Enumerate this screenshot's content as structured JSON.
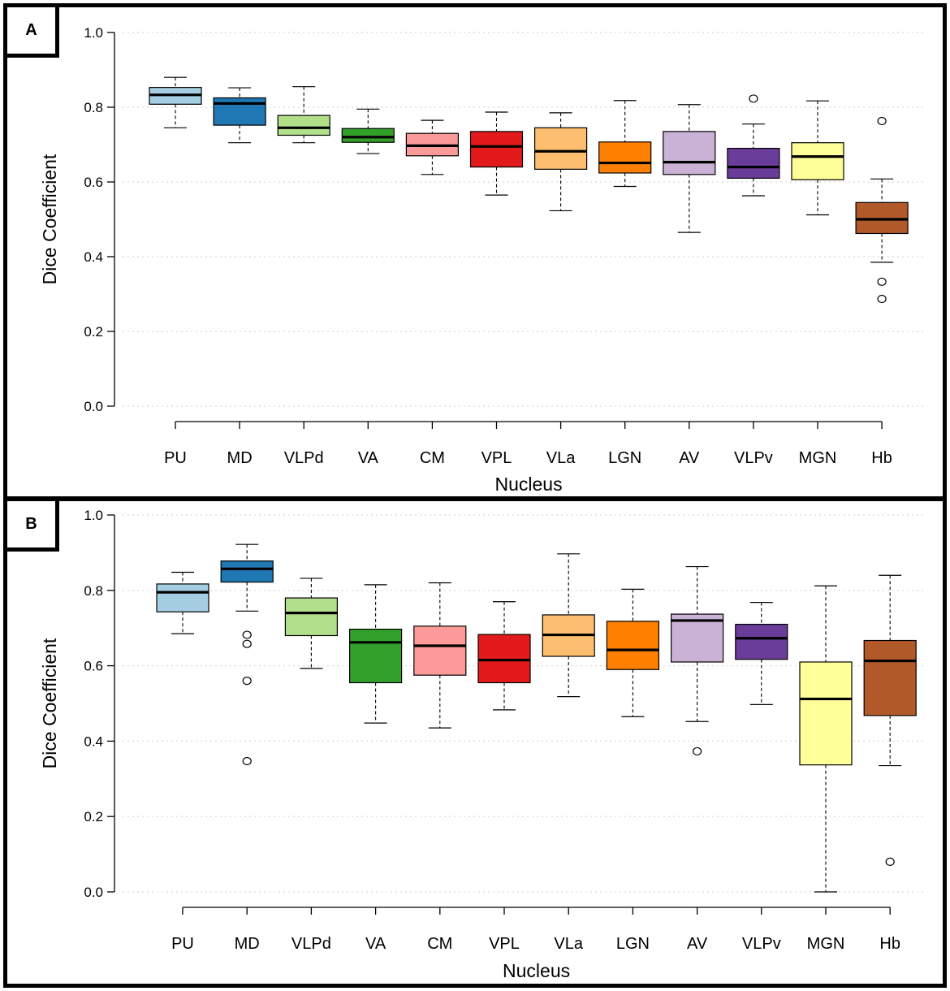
{
  "chart_data": [
    {
      "panel_label": "A",
      "type": "boxplot",
      "ylabel": "Dice Coefficient",
      "xlabel": "Nucleus",
      "ylim": [
        0,
        1
      ],
      "yticks": [
        "0.0",
        "0.2",
        "0.4",
        "0.6",
        "0.8",
        "1.0"
      ],
      "grid": "horizontal dotted",
      "categories": [
        "PU",
        "MD",
        "VLPd",
        "VA",
        "CM",
        "VPL",
        "VLa",
        "LGN",
        "AV",
        "VLPv",
        "MGN",
        "Hb"
      ],
      "colors": [
        "#a6cee3",
        "#1f78b4",
        "#b2df8a",
        "#33a02c",
        "#fb9a99",
        "#e31a1c",
        "#fdbf6f",
        "#ff7f00",
        "#cab2d6",
        "#6a3d9a",
        "#ffff99",
        "#b15928"
      ],
      "boxes": [
        {
          "min": 0.745,
          "q1": 0.808,
          "median": 0.833,
          "q3": 0.853,
          "max": 0.88,
          "outliers": []
        },
        {
          "min": 0.705,
          "q1": 0.752,
          "median": 0.81,
          "q3": 0.825,
          "max": 0.852,
          "outliers": []
        },
        {
          "min": 0.705,
          "q1": 0.725,
          "median": 0.745,
          "q3": 0.778,
          "max": 0.855,
          "outliers": []
        },
        {
          "min": 0.676,
          "q1": 0.706,
          "median": 0.72,
          "q3": 0.743,
          "max": 0.795,
          "outliers": []
        },
        {
          "min": 0.62,
          "q1": 0.67,
          "median": 0.697,
          "q3": 0.73,
          "max": 0.765,
          "outliers": []
        },
        {
          "min": 0.565,
          "q1": 0.64,
          "median": 0.695,
          "q3": 0.735,
          "max": 0.787,
          "outliers": []
        },
        {
          "min": 0.523,
          "q1": 0.634,
          "median": 0.682,
          "q3": 0.745,
          "max": 0.785,
          "outliers": []
        },
        {
          "min": 0.588,
          "q1": 0.624,
          "median": 0.651,
          "q3": 0.707,
          "max": 0.818,
          "outliers": []
        },
        {
          "min": 0.465,
          "q1": 0.62,
          "median": 0.653,
          "q3": 0.735,
          "max": 0.807,
          "outliers": []
        },
        {
          "min": 0.563,
          "q1": 0.61,
          "median": 0.64,
          "q3": 0.69,
          "max": 0.755,
          "outliers": [
            0.823
          ]
        },
        {
          "min": 0.512,
          "q1": 0.606,
          "median": 0.668,
          "q3": 0.705,
          "max": 0.817,
          "outliers": []
        },
        {
          "min": 0.385,
          "q1": 0.462,
          "median": 0.5,
          "q3": 0.545,
          "max": 0.608,
          "outliers": [
            0.763,
            0.333,
            0.287
          ]
        }
      ]
    },
    {
      "panel_label": "B",
      "type": "boxplot",
      "ylabel": "Dice Coefficient",
      "xlabel": "Nucleus",
      "ylim": [
        0,
        1
      ],
      "yticks": [
        "0.0",
        "0.2",
        "0.4",
        "0.6",
        "0.8",
        "1.0"
      ],
      "grid": "horizontal dotted",
      "categories": [
        "PU",
        "MD",
        "VLPd",
        "VA",
        "CM",
        "VPL",
        "VLa",
        "LGN",
        "AV",
        "VLPv",
        "MGN",
        "Hb"
      ],
      "colors": [
        "#a6cee3",
        "#1f78b4",
        "#b2df8a",
        "#33a02c",
        "#fb9a99",
        "#e31a1c",
        "#fdbf6f",
        "#ff7f00",
        "#cab2d6",
        "#6a3d9a",
        "#ffff99",
        "#b15928"
      ],
      "boxes": [
        {
          "min": 0.685,
          "q1": 0.743,
          "median": 0.795,
          "q3": 0.817,
          "max": 0.848,
          "outliers": []
        },
        {
          "min": 0.745,
          "q1": 0.822,
          "median": 0.857,
          "q3": 0.878,
          "max": 0.922,
          "outliers": [
            0.682,
            0.658,
            0.56,
            0.347
          ]
        },
        {
          "min": 0.593,
          "q1": 0.68,
          "median": 0.74,
          "q3": 0.78,
          "max": 0.832,
          "outliers": []
        },
        {
          "min": 0.448,
          "q1": 0.555,
          "median": 0.662,
          "q3": 0.697,
          "max": 0.815,
          "outliers": []
        },
        {
          "min": 0.435,
          "q1": 0.575,
          "median": 0.653,
          "q3": 0.705,
          "max": 0.82,
          "outliers": []
        },
        {
          "min": 0.483,
          "q1": 0.555,
          "median": 0.615,
          "q3": 0.683,
          "max": 0.77,
          "outliers": []
        },
        {
          "min": 0.518,
          "q1": 0.625,
          "median": 0.682,
          "q3": 0.735,
          "max": 0.897,
          "outliers": []
        },
        {
          "min": 0.465,
          "q1": 0.59,
          "median": 0.642,
          "q3": 0.718,
          "max": 0.803,
          "outliers": []
        },
        {
          "min": 0.452,
          "q1": 0.61,
          "median": 0.72,
          "q3": 0.737,
          "max": 0.863,
          "outliers": [
            0.373
          ]
        },
        {
          "min": 0.497,
          "q1": 0.617,
          "median": 0.673,
          "q3": 0.71,
          "max": 0.768,
          "outliers": []
        },
        {
          "min": 0.0,
          "q1": 0.337,
          "median": 0.512,
          "q3": 0.61,
          "max": 0.812,
          "outliers": []
        },
        {
          "min": 0.335,
          "q1": 0.468,
          "median": 0.613,
          "q3": 0.667,
          "max": 0.84,
          "outliers": [
            0.08
          ]
        }
      ]
    }
  ]
}
